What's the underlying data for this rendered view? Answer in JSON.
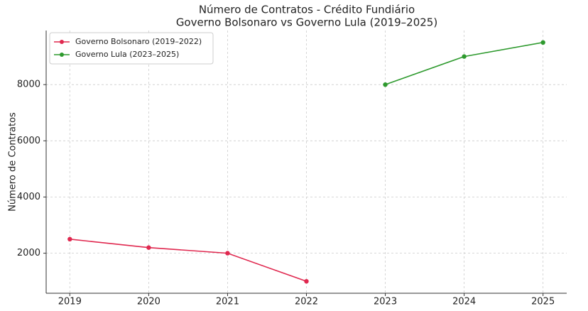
{
  "chart_data": {
    "type": "line",
    "title": [
      "Número de Contratos - Crédito Fundiário",
      "Governo Bolsonaro vs Governo Lula (2019–2025)"
    ],
    "y_label": "Número de Contratos",
    "x": [
      2019,
      2020,
      2021,
      2022,
      2023,
      2024,
      2025
    ],
    "series": [
      {
        "name": "Governo Bolsonaro (2019–2022)",
        "color": "#e0284f",
        "values": [
          2500,
          2200,
          2000,
          1000,
          null,
          null,
          null
        ]
      },
      {
        "name": "Governo Lula (2023–2025)",
        "color": "#2e9a2e",
        "values": [
          null,
          null,
          null,
          null,
          8000,
          9000,
          9500
        ]
      }
    ],
    "xlim": [
      2018.7,
      2025.3
    ],
    "xticks": [
      2019,
      2020,
      2021,
      2022,
      2023,
      2024,
      2025
    ],
    "ylim": [
      575,
      9925
    ],
    "yticks": [
      2000,
      4000,
      6000,
      8000
    ],
    "grid": true,
    "legend": "upper left"
  }
}
